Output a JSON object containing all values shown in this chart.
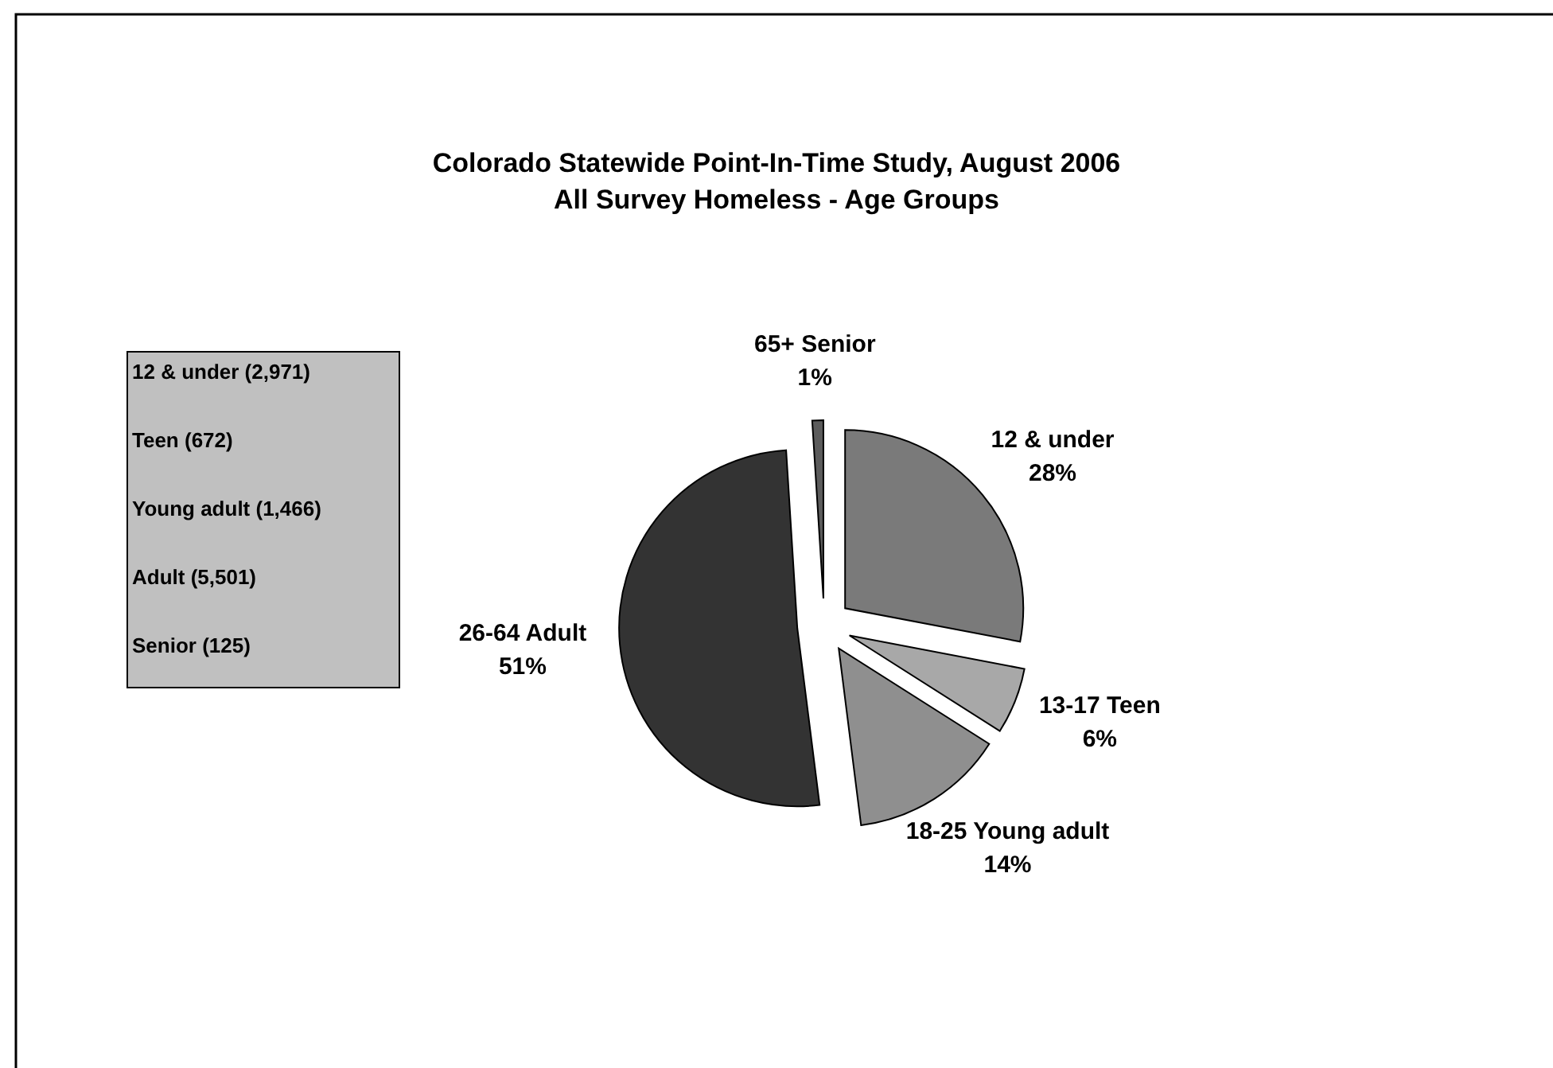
{
  "chart_data": {
    "type": "pie",
    "title": "Colorado Statewide Point-In-Time Study, August 2006",
    "subtitle": "All Survey Homeless - Age Groups",
    "categories": [
      "12 & under",
      "13-17 Teen",
      "18-25 Young adult",
      "26-64 Adult",
      "65+ Senior"
    ],
    "values": [
      28,
      6,
      14,
      51,
      1
    ],
    "value_labels": [
      "28%",
      "6%",
      "14%",
      "51%",
      "1%"
    ],
    "colors": [
      "#7a7a7a",
      "#a8a8a8",
      "#8f8f8f",
      "#333333",
      "#5c5c5c"
    ],
    "annotations": [
      "12 & under (2,971)",
      "Teen (672)",
      "Young adult (1,466)",
      "Adult (5,501)",
      "Senior (125)"
    ]
  }
}
